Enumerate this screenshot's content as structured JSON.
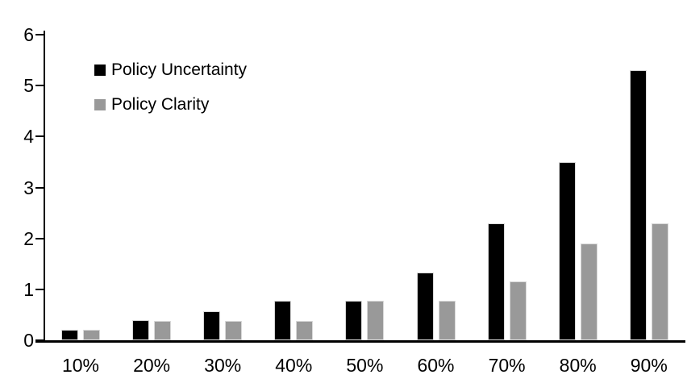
{
  "chart_data": {
    "type": "bar",
    "title": "",
    "xlabel": "",
    "ylabel": "",
    "categories": [
      "10%",
      "20%",
      "30%",
      "40%",
      "50%",
      "60%",
      "70%",
      "80%",
      "90%"
    ],
    "series": [
      {
        "name": "Policy Uncertainty",
        "color": "#000000",
        "values": [
          0.2,
          0.4,
          0.57,
          0.77,
          0.78,
          1.33,
          2.3,
          3.5,
          5.3
        ]
      },
      {
        "name": "Policy Clarity",
        "color": "#999999",
        "values": [
          0.2,
          0.38,
          0.38,
          0.38,
          0.77,
          0.77,
          1.15,
          1.9,
          2.3
        ]
      }
    ],
    "ylim": [
      0,
      6
    ],
    "ytick_step": 1,
    "ytick_labels": [
      "0",
      "1",
      "2",
      "3",
      "4",
      "5",
      "6"
    ],
    "grid": false,
    "legend_position": "top-left-inside",
    "colors": {
      "axis": "#000000",
      "text": "#000000",
      "bar_border": "#d9d9d9",
      "background": "#ffffff"
    }
  }
}
